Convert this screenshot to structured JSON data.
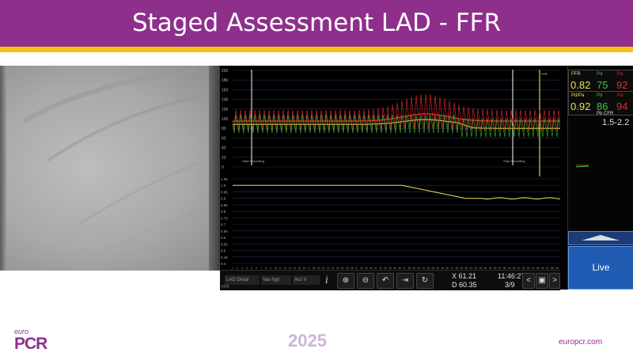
{
  "slide": {
    "title": "Staged Assessment LAD - FFR",
    "year": "2025",
    "website": "europcr.com",
    "logo": {
      "top": "euro",
      "main": "PCR"
    },
    "colors": {
      "header": "#8e2f8c",
      "stripe": "#f4c214"
    }
  },
  "monitor": {
    "top_plot": {
      "y_ticks": [
        "200",
        "180",
        "160",
        "140",
        "120",
        "100",
        "80",
        "60",
        "40",
        "20",
        "0"
      ],
      "marker_left_label": "Start Recording",
      "marker_right_label": "Stop Recording",
      "corner_label": "FFR"
    },
    "bottom_plot": {
      "y_ticks": [
        "1.05",
        "1.0",
        "0.95",
        "0.9",
        "0.85",
        "0.8",
        "0.75",
        "0.7",
        "0.65",
        "0.6",
        "0.55",
        "0.5",
        "0.45",
        "0.4"
      ]
    },
    "x_axis": {
      "ticks": [
        "1",
        "2",
        "3",
        "4",
        "5",
        "6",
        "7",
        "8",
        "9",
        "10",
        "11",
        "12",
        "13",
        "14",
        "15",
        "16",
        "17",
        "18",
        "19",
        "20",
        "21",
        "22",
        "23",
        "24",
        "25",
        "26",
        "27",
        "28",
        "29",
        "30",
        "31",
        "32",
        "33",
        "34",
        "35",
        "36",
        "37",
        "38",
        "39",
        "40",
        "41",
        "42",
        "43",
        "44",
        "45",
        "46",
        "47",
        "48",
        "49",
        "50",
        "51",
        "52",
        "53",
        "54",
        "55",
        "56",
        "57",
        "58",
        "59",
        "60",
        "61",
        "62",
        "63",
        "64",
        "65",
        "66",
        "67",
        "68",
        "69"
      ]
    },
    "toolbar": {
      "vessel_select": "LAD Distal",
      "pressure_select": "Vas hyp",
      "view_select": "Acc V",
      "info_icon": "i",
      "x_readout": "X 61.21",
      "d_readout": "D 60.35",
      "time": "11:46:27",
      "page": "3/9",
      "prev": "<",
      "next": ">",
      "bottom_left_label": "FFR"
    },
    "panel": {
      "ffr_label": "FFR",
      "ffr_value": "0.82",
      "pd_label": "Pd",
      "pd_value": "75",
      "pa_label": "Pa",
      "pa_value": "92",
      "pdpa_label": "Pd/Pa",
      "pdpa_value": "0.92",
      "pdpa_pd_label": "Pd",
      "pdpa_pd_value": "86",
      "pdpa_pa_label": "Pa",
      "pdpa_pa_value": "94",
      "pbcfr_label": "Pb CFR",
      "pbcfr_value": "1.5-2.2",
      "live_label": "Live",
      "colors": {
        "ffr": "#f2e24a",
        "pd": "#38c840",
        "pa": "#e03030"
      }
    }
  }
}
